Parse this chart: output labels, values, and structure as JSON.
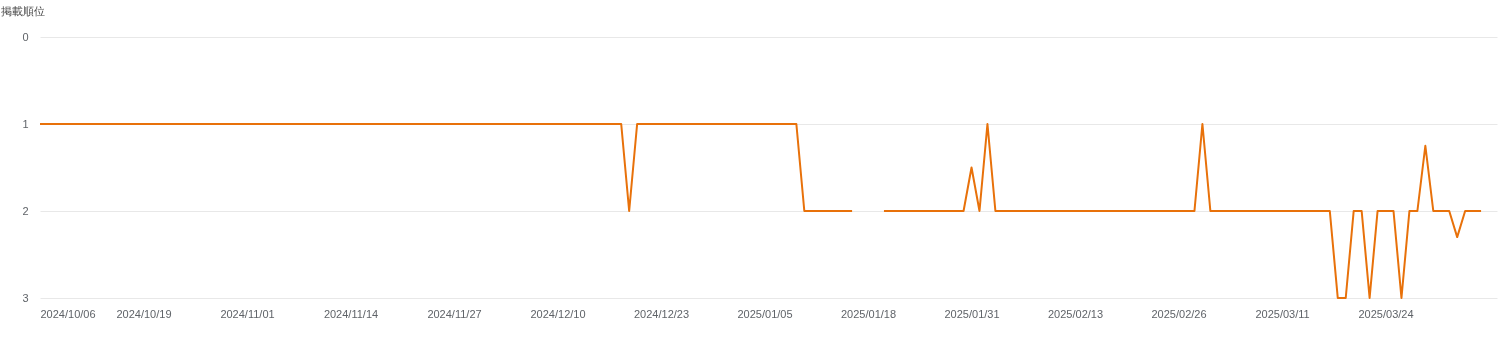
{
  "chart_data": {
    "type": "line",
    "ylabel": "掲載順位",
    "x": [
      "2024-10-06",
      "2024-12-18",
      "2024-12-19",
      "2024-12-20",
      "2025-01-09",
      "2025-01-10",
      "2025-01-16",
      "2025-01-17",
      "2025-01-20",
      "2025-01-30",
      "2025-01-31",
      "2025-02-01",
      "2025-02-02",
      "2025-02-03",
      "2025-02-28",
      "2025-03-01",
      "2025-03-02",
      "2025-03-17",
      "2025-03-18",
      "2025-03-19",
      "2025-03-20",
      "2025-03-21",
      "2025-03-22",
      "2025-03-23",
      "2025-03-25",
      "2025-03-26",
      "2025-03-27",
      "2025-03-28",
      "2025-03-29",
      "2025-03-30",
      "2025-04-01",
      "2025-04-02",
      "2025-04-03",
      "2025-04-05"
    ],
    "series": [
      {
        "color": "#e8710a",
        "values": [
          1,
          1,
          2,
          1,
          1,
          2,
          2,
          null,
          2,
          2,
          1.5,
          2,
          1,
          2,
          2,
          1,
          2,
          2,
          3,
          3,
          2,
          2,
          3,
          2,
          2,
          3,
          2,
          2,
          1.25,
          2,
          2,
          2.3,
          2,
          2
        ]
      }
    ],
    "xlim": [
      "2024-10-06",
      "2025-04-07"
    ],
    "xticks": [
      {
        "value": "2024-10-06",
        "label": "2024/10/06"
      },
      {
        "value": "2024-10-19",
        "label": "2024/10/19"
      },
      {
        "value": "2024-11-01",
        "label": "2024/11/01"
      },
      {
        "value": "2024-11-14",
        "label": "2024/11/14"
      },
      {
        "value": "2024-11-27",
        "label": "2024/11/27"
      },
      {
        "value": "2024-12-10",
        "label": "2024/12/10"
      },
      {
        "value": "2024-12-23",
        "label": "2024/12/23"
      },
      {
        "value": "2025-01-05",
        "label": "2025/01/05"
      },
      {
        "value": "2025-01-18",
        "label": "2025/01/18"
      },
      {
        "value": "2025-01-31",
        "label": "2025/01/31"
      },
      {
        "value": "2025-02-13",
        "label": "2025/02/13"
      },
      {
        "value": "2025-02-26",
        "label": "2025/02/26"
      },
      {
        "value": "2025-03-11",
        "label": "2025/03/11"
      },
      {
        "value": "2025-03-24",
        "label": "2025/03/24"
      }
    ],
    "ylim": [
      3,
      0
    ],
    "yticks": [
      0,
      1,
      2,
      3
    ],
    "grid": "y",
    "legend": false,
    "marker": "none",
    "line_style": "solid"
  }
}
